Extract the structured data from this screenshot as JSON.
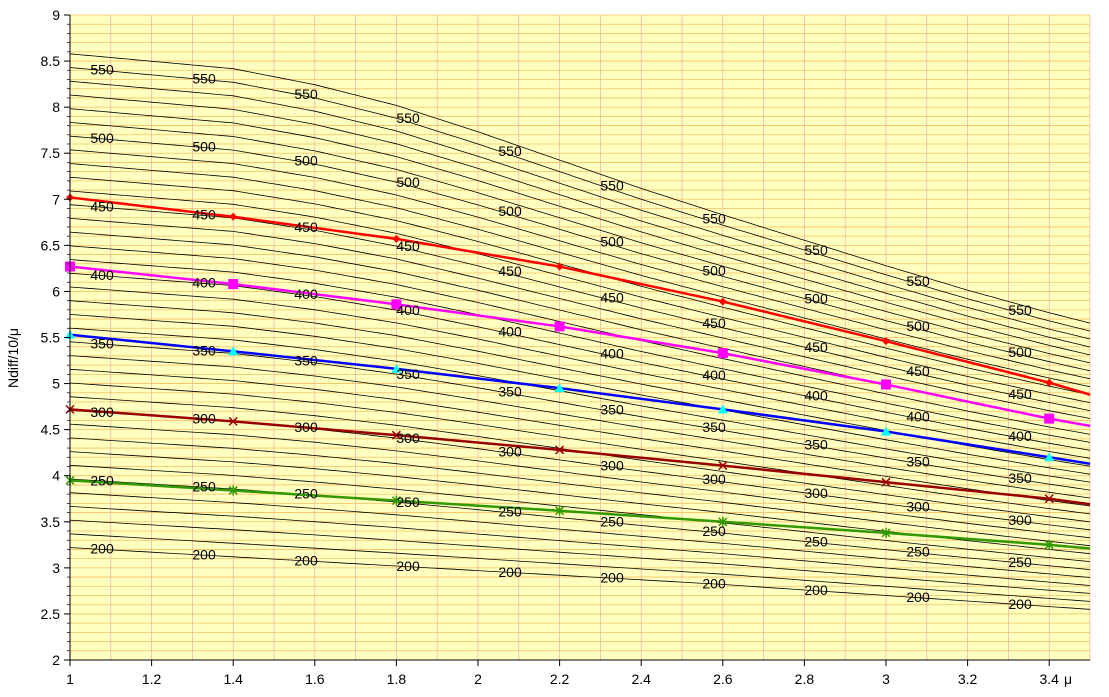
{
  "chart_data": {
    "type": "line",
    "title": "",
    "xlabel": "μ",
    "ylabel": "Ndiff/10/μ",
    "xlim": [
      1,
      3.5
    ],
    "ylim": [
      2,
      9
    ],
    "xticks": [
      "1",
      "1.2",
      "1.4",
      "1.6",
      "1.8",
      "2",
      "2.2",
      "2.4",
      "2.6",
      "2.8",
      "3",
      "3.2",
      "3.4"
    ],
    "yticks": [
      "2",
      "2.5",
      "3",
      "3.5",
      "4",
      "4.5",
      "5",
      "5.5",
      "6",
      "6.5",
      "7",
      "7.5",
      "8",
      "8.5",
      "9"
    ],
    "grid": true,
    "background_color": "#FFFFC0",
    "grid_colors": {
      "minor_horizontal": "#F4C060",
      "vertical": "#F4B4A8"
    },
    "contours": {
      "color": "#000000",
      "levels_from": 200,
      "levels_to": 560,
      "level_step": 10,
      "x": [
        1,
        1.2,
        1.4,
        1.6,
        1.8,
        2,
        2.2,
        2.4,
        2.6,
        2.8,
        3,
        3.2,
        3.4,
        3.5
      ],
      "y_at_200": [
        3.22,
        3.17,
        3.12,
        3.07,
        3.02,
        2.97,
        2.92,
        2.87,
        2.82,
        2.76,
        2.7,
        2.64,
        2.58,
        2.55
      ],
      "y_at_550": [
        8.43,
        8.35,
        8.27,
        8.1,
        7.88,
        7.6,
        7.3,
        7.0,
        6.72,
        6.45,
        6.18,
        5.92,
        5.68,
        5.57
      ],
      "labels": [
        "200",
        "250",
        "300",
        "350",
        "400",
        "450",
        "500",
        "550"
      ],
      "label_values": [
        200,
        250,
        300,
        350,
        400,
        450,
        500,
        550
      ],
      "label_x": [
        1.05,
        1.3,
        1.55,
        1.8,
        2.05,
        2.3,
        2.55,
        2.8,
        3.05,
        3.3,
        3.55
      ]
    },
    "x": [
      1,
      1.4,
      1.8,
      2.2,
      2.6,
      3,
      3.4
    ],
    "series": [
      {
        "level": 450,
        "color": "#FF0000",
        "marker": "diamond",
        "values": [
          7.02,
          6.81,
          6.57,
          6.27,
          5.89,
          5.46,
          5.01
        ]
      },
      {
        "level": 400,
        "color": "#FF00FF",
        "marker": "square",
        "values": [
          6.27,
          6.08,
          5.86,
          5.62,
          5.33,
          4.99,
          4.62
        ]
      },
      {
        "level": 350,
        "color": "#0000FF",
        "marker": "triangle",
        "values": [
          5.53,
          5.35,
          5.16,
          4.95,
          4.72,
          4.48,
          4.2
        ]
      },
      {
        "level": 300,
        "color": "#990000",
        "marker": "x",
        "values": [
          4.72,
          4.59,
          4.44,
          4.28,
          4.11,
          3.93,
          3.75
        ]
      },
      {
        "level": 250,
        "color": "#339900",
        "marker": "asterisk",
        "values": [
          3.95,
          3.84,
          3.73,
          3.62,
          3.5,
          3.38,
          3.25
        ]
      }
    ],
    "series_end_y": [
      4.88,
      4.54,
      4.13,
      3.69,
      3.21
    ]
  }
}
